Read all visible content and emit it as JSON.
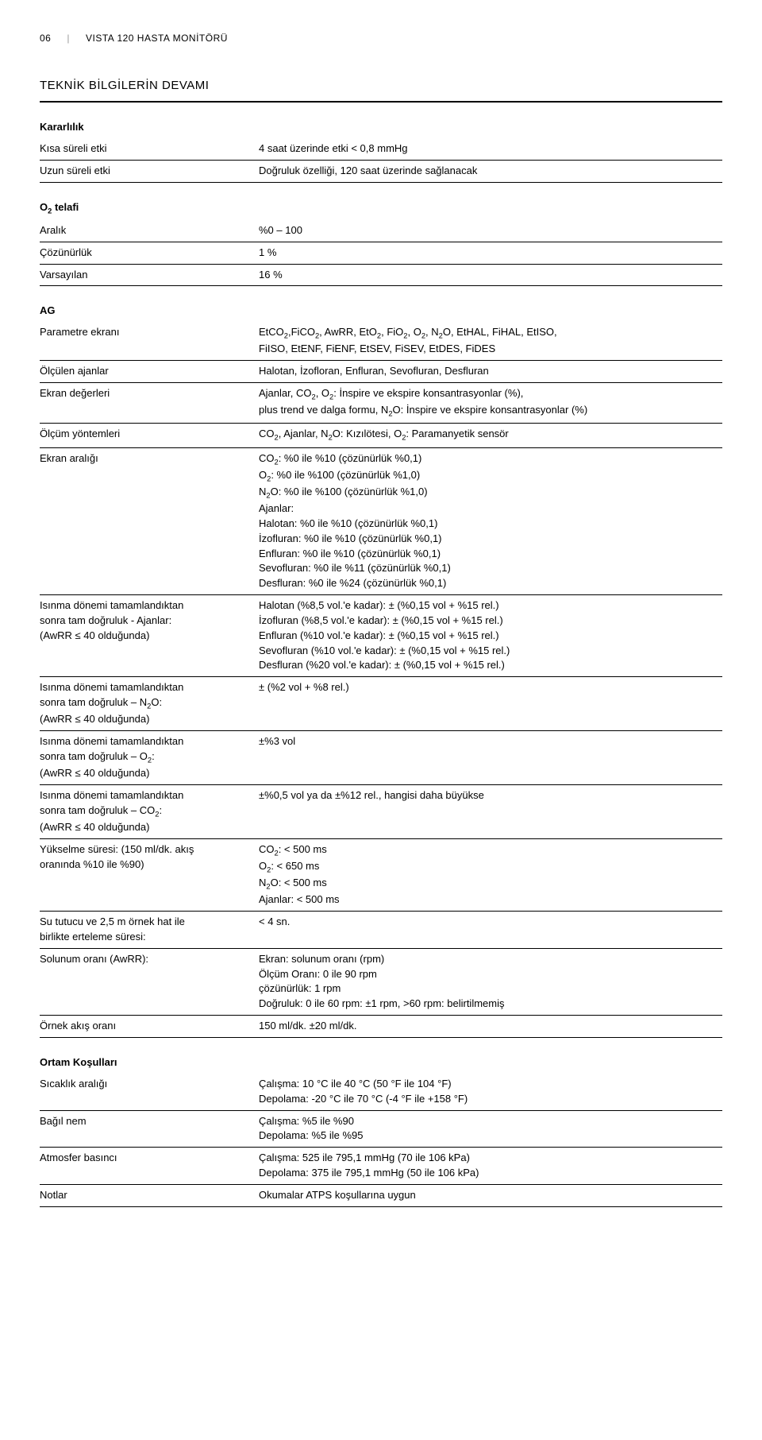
{
  "header": {
    "page_num": "06",
    "separator": "|",
    "title": "VISTA 120 HASTA MONİTÖRÜ"
  },
  "section_title": "TEKNİK BİLGİLERİN DEVAMI",
  "groups": [
    {
      "title": "Kararlılık",
      "rows": [
        {
          "label": "Kısa süreli etki",
          "value": "4 saat üzerinde etki < 0,8 mmHg"
        },
        {
          "label": "Uzun süreli etki",
          "value": "Doğruluk özelliği, 120 saat üzerinde sağlanacak"
        }
      ]
    },
    {
      "title_html": "O<span class=\"sub\">2</span> telafi",
      "rows": [
        {
          "label": "Aralık",
          "value": "%0 – 100"
        },
        {
          "label": "Çözünürlük",
          "value": "1 %"
        },
        {
          "label": "Varsayılan",
          "value": "16 %"
        }
      ]
    },
    {
      "title": "AG",
      "rows": [
        {
          "label": "Parametre ekranı",
          "value_html": "EtCO<span class=\"sub\">2</span>,FiCO<span class=\"sub\">2</span>, AwRR, EtO<span class=\"sub\">2</span>, FiO<span class=\"sub\">2</span>, O<span class=\"sub\">2</span>, N<span class=\"sub\">2</span>O, EtHAL, FiHAL, EtISO,<br>FiISO, EtENF, FiENF, EtSEV, FiSEV, EtDES, FiDES"
        },
        {
          "label": "Ölçülen ajanlar",
          "value": "Halotan, İzofloran, Enfluran, Sevofluran, Desfluran"
        },
        {
          "label": "Ekran değerleri",
          "value_html": "Ajanlar, CO<span class=\"sub\">2</span>, O<span class=\"sub\">2</span>: İnspire ve ekspire konsantrasyonlar (%),<br>plus trend ve dalga formu, N<span class=\"sub\">2</span>O: İnspire ve ekspire konsantrasyonlar (%)"
        },
        {
          "label": "Ölçüm yöntemleri",
          "value_html": "CO<span class=\"sub\">2</span>, Ajanlar, N<span class=\"sub\">2</span>O: Kızılötesi, O<span class=\"sub\">2</span>: Paramanyetik sensör"
        },
        {
          "label": "Ekran aralığı",
          "value_html": "CO<span class=\"sub\">2</span>: %0 ile %10 (çözünürlük %0,1)<br>O<span class=\"sub\">2</span>: %0 ile %100 (çözünürlük %1,0)<br>N<span class=\"sub\">2</span>O: %0 ile %100 (çözünürlük %1,0)<br>Ajanlar:<br>Halotan: %0 ile %10 (çözünürlük %0,1)<br>İzofluran: %0 ile %10 (çözünürlük %0,1)<br>Enfluran: %0 ile %10 (çözünürlük %0,1)<br>Sevofluran: %0 ile %11 (çözünürlük %0,1)<br>Desfluran: %0 ile %24 (çözünürlük %0,1)"
        },
        {
          "label_html": "Isınma dönemi tamamlandıktan<br>sonra tam doğruluk - Ajanlar:<br>(AwRR ≤ 40 olduğunda)",
          "value_html": "Halotan (%8,5 vol.'e kadar): ± (%0,15 vol + %15 rel.)<br>İzofluran (%8,5 vol.'e kadar): ± (%0,15 vol + %15 rel.)<br>Enfluran (%10 vol.'e kadar): ± (%0,15 vol + %15 rel.)<br>Sevofluran (%10 vol.'e kadar): ± (%0,15 vol + %15 rel.)<br>Desfluran (%20 vol.'e kadar): ± (%0,15 vol + %15 rel.)"
        },
        {
          "label_html": "Isınma dönemi tamamlandıktan<br>sonra tam doğruluk – N<span class=\"sub\">2</span>O:<br>(AwRR ≤ 40 olduğunda)",
          "value": "± (%2 vol + %8 rel.)"
        },
        {
          "label_html": "Isınma dönemi tamamlandıktan<br>sonra tam doğruluk – O<span class=\"sub\">2</span>:<br>(AwRR ≤ 40 olduğunda)",
          "value": "±%3 vol"
        },
        {
          "label_html": "Isınma dönemi tamamlandıktan<br>sonra tam doğruluk – CO<span class=\"sub\">2</span>:<br>(AwRR ≤ 40 olduğunda)",
          "value": "±%0,5 vol ya da ±%12 rel., hangisi daha büyükse"
        },
        {
          "label_html": "Yükselme süresi: (150 ml/dk. akış<br>oranında %10 ile %90)",
          "value_html": "CO<span class=\"sub\">2</span>: < 500 ms<br>O<span class=\"sub\">2</span>: < 650 ms<br>N<span class=\"sub\">2</span>O: < 500 ms<br>Ajanlar: < 500 ms"
        },
        {
          "label_html": "Su tutucu ve 2,5 m örnek hat ile<br>birlikte erteleme süresi:",
          "value": "< 4 sn."
        },
        {
          "label": "Solunum oranı (AwRR):",
          "value_html": "Ekran: solunum oranı (rpm)<br>Ölçüm Oranı: 0 ile 90 rpm<br>çözünürlük: 1 rpm<br>Doğruluk: 0 ile 60 rpm: ±1 rpm, >60 rpm: belirtilmemiş"
        },
        {
          "label": "Örnek akış oranı",
          "value": "150 ml/dk. ±20 ml/dk."
        }
      ]
    },
    {
      "title": "Ortam Koşulları",
      "rows": [
        {
          "label": "Sıcaklık aralığı",
          "value_html": "Çalışma: 10 °C ile 40 °C (50 °F ile 104 °F)<br>Depolama: -20 °C ile 70 °C (-4 °F ile +158 °F)"
        },
        {
          "label": "Bağıl nem",
          "value_html": "Çalışma: %5 ile %90<br>Depolama: %5 ile %95"
        },
        {
          "label": "Atmosfer basıncı",
          "value_html": "Çalışma: 525 ile 795,1 mmHg (70 ile 106 kPa)<br>Depolama: 375 ile 795,1 mmHg (50 ile 106 kPa)"
        },
        {
          "label": "Notlar",
          "value": "Okumalar ATPS koşullarına uygun"
        }
      ]
    }
  ]
}
